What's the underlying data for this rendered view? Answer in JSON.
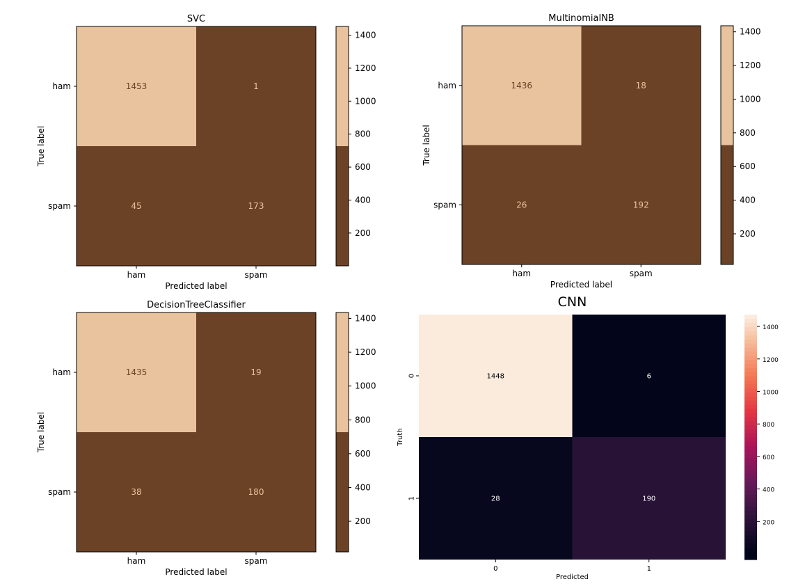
{
  "chart_data": [
    {
      "type": "heatmap",
      "title": "SVC",
      "xlabel": "Predicted label",
      "ylabel": "True label",
      "xticklabels": [
        "ham",
        "spam"
      ],
      "yticklabels": [
        "ham",
        "spam"
      ],
      "values": [
        [
          1453,
          1
        ],
        [
          45,
          173
        ]
      ],
      "colormap": "binary two-tone",
      "colors": {
        "low": "#6b4226",
        "high": "#e8c39e",
        "low_text": "#e8c39e",
        "high_text": "#6b4226"
      },
      "colorbar": {
        "ticks": [
          200,
          400,
          600,
          800,
          1000,
          1200,
          1400
        ],
        "range": [
          1,
          1453
        ]
      }
    },
    {
      "type": "heatmap",
      "title": "MultinomialNB",
      "xlabel": "Predicted label",
      "ylabel": "True label",
      "xticklabels": [
        "ham",
        "spam"
      ],
      "yticklabels": [
        "ham",
        "spam"
      ],
      "values": [
        [
          1436,
          18
        ],
        [
          26,
          192
        ]
      ],
      "colormap": "binary two-tone",
      "colors": {
        "low": "#6b4226",
        "high": "#e8c39e",
        "low_text": "#e8c39e",
        "high_text": "#6b4226"
      },
      "colorbar": {
        "ticks": [
          200,
          400,
          600,
          800,
          1000,
          1200,
          1400
        ],
        "range": [
          18,
          1436
        ]
      }
    },
    {
      "type": "heatmap",
      "title": "DecisionTreeClassifier",
      "xlabel": "Predicted label",
      "ylabel": "True label",
      "xticklabels": [
        "ham",
        "spam"
      ],
      "yticklabels": [
        "ham",
        "spam"
      ],
      "values": [
        [
          1435,
          19
        ],
        [
          38,
          180
        ]
      ],
      "colormap": "binary two-tone",
      "colors": {
        "low": "#6b4226",
        "high": "#e8c39e",
        "low_text": "#e8c39e",
        "high_text": "#6b4226"
      },
      "colorbar": {
        "ticks": [
          200,
          400,
          600,
          800,
          1000,
          1200,
          1400
        ],
        "range": [
          19,
          1435
        ]
      }
    },
    {
      "type": "heatmap",
      "title": "CNN",
      "xlabel": "Predicted",
      "ylabel": "Truth",
      "xticklabels": [
        "0",
        "1"
      ],
      "yticklabels": [
        "0",
        "1"
      ],
      "values": [
        [
          1448,
          6
        ],
        [
          28,
          190
        ]
      ],
      "colormap": "rocket",
      "colors": {
        "light_text": "#ffffff",
        "dark_text": "#000000"
      },
      "colorbar": {
        "ticks": [
          200,
          400,
          600,
          800,
          1000,
          1200,
          1400
        ],
        "range": [
          6,
          1448
        ]
      }
    }
  ]
}
